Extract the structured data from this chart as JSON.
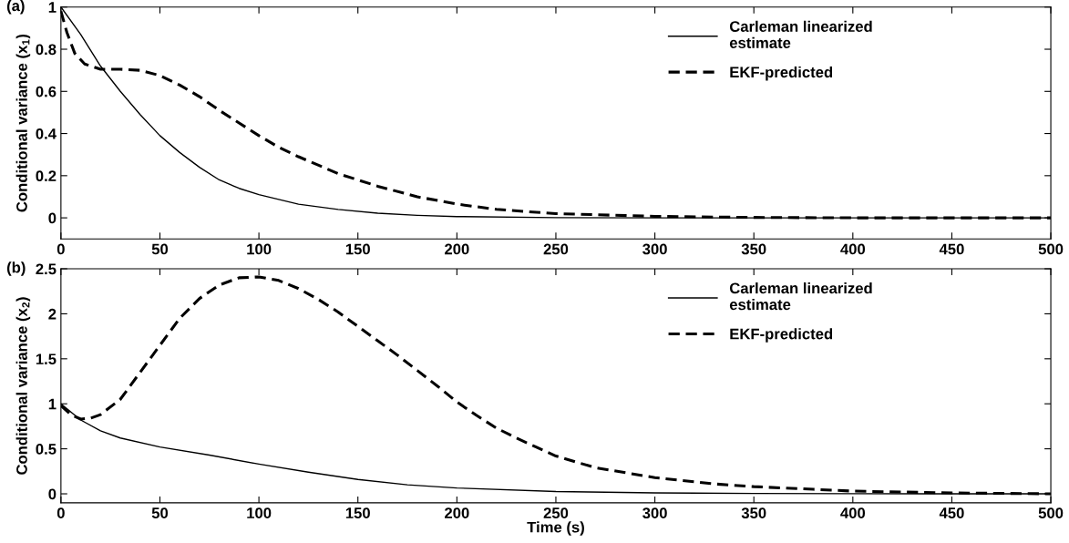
{
  "chart_data": [
    {
      "type": "line",
      "ylabel": "Conditional variance (x$_{1}$)",
      "annotations": [
        "(a)"
      ],
      "xlim": [
        0,
        500
      ],
      "xticks": [
        0,
        50,
        100,
        150,
        200,
        250,
        300,
        350,
        400,
        450,
        500
      ],
      "ylim": [
        -0.1,
        1
      ],
      "yticks": [
        0,
        0.2,
        0.4,
        0.6,
        0.8,
        1
      ],
      "grid": false,
      "legend": "top",
      "series": [
        {
          "name": "Carleman linearized\nestimate",
          "color": "#000000",
          "line_style": "solid",
          "x": [
            0,
            10,
            20,
            30,
            40,
            50,
            60,
            70,
            80,
            90,
            100,
            120,
            140,
            160,
            180,
            200,
            250,
            300,
            500
          ],
          "values": [
            1,
            0.87,
            0.72,
            0.6,
            0.49,
            0.39,
            0.31,
            0.24,
            0.18,
            0.14,
            0.11,
            0.065,
            0.04,
            0.022,
            0.012,
            0.006,
            0.001,
            0,
            0
          ]
        },
        {
          "name": "EKF-predicted",
          "color": "#000000",
          "line_style": "dashed",
          "x": [
            0,
            3,
            7,
            12,
            20,
            30,
            40,
            50,
            60,
            70,
            80,
            90,
            100,
            110,
            120,
            140,
            160,
            180,
            200,
            220,
            250,
            300,
            350,
            400,
            500
          ],
          "values": [
            0.98,
            0.88,
            0.78,
            0.73,
            0.705,
            0.705,
            0.7,
            0.675,
            0.63,
            0.575,
            0.51,
            0.45,
            0.39,
            0.335,
            0.29,
            0.21,
            0.15,
            0.1,
            0.065,
            0.04,
            0.02,
            0.007,
            0.002,
            0,
            0
          ]
        }
      ]
    },
    {
      "type": "line",
      "xlabel": "Time (s)",
      "ylabel": "Conditional variance (x$_{2}$)",
      "annotations": [
        "(b)"
      ],
      "xlim": [
        0,
        500
      ],
      "xticks": [
        0,
        50,
        100,
        150,
        200,
        250,
        300,
        350,
        400,
        450,
        500
      ],
      "ylim": [
        -0.1,
        2.5
      ],
      "yticks": [
        0,
        0.5,
        1,
        1.5,
        2,
        2.5
      ],
      "grid": false,
      "legend": "top",
      "series": [
        {
          "name": "Carleman linearized\nestimate",
          "color": "#000000",
          "line_style": "solid",
          "x": [
            0,
            10,
            20,
            30,
            50,
            75,
            100,
            125,
            150,
            175,
            200,
            250,
            300,
            350,
            400,
            500
          ],
          "values": [
            1,
            0.82,
            0.7,
            0.62,
            0.52,
            0.43,
            0.33,
            0.24,
            0.16,
            0.1,
            0.065,
            0.025,
            0.01,
            0.004,
            0.001,
            0
          ]
        },
        {
          "name": "EKF-predicted",
          "color": "#000000",
          "line_style": "dashed",
          "x": [
            0,
            5,
            10,
            15,
            20,
            30,
            40,
            50,
            60,
            70,
            80,
            90,
            100,
            110,
            120,
            130,
            140,
            150,
            160,
            170,
            180,
            190,
            200,
            210,
            220,
            230,
            240,
            250,
            270,
            300,
            330,
            350,
            380,
            400,
            450,
            500
          ],
          "values": [
            0.98,
            0.88,
            0.83,
            0.84,
            0.88,
            1.05,
            1.35,
            1.65,
            1.95,
            2.17,
            2.32,
            2.4,
            2.41,
            2.37,
            2.28,
            2.16,
            2.02,
            1.86,
            1.7,
            1.54,
            1.37,
            1.2,
            1.02,
            0.87,
            0.73,
            0.62,
            0.52,
            0.42,
            0.29,
            0.18,
            0.11,
            0.08,
            0.05,
            0.03,
            0.01,
            0
          ]
        }
      ]
    }
  ]
}
